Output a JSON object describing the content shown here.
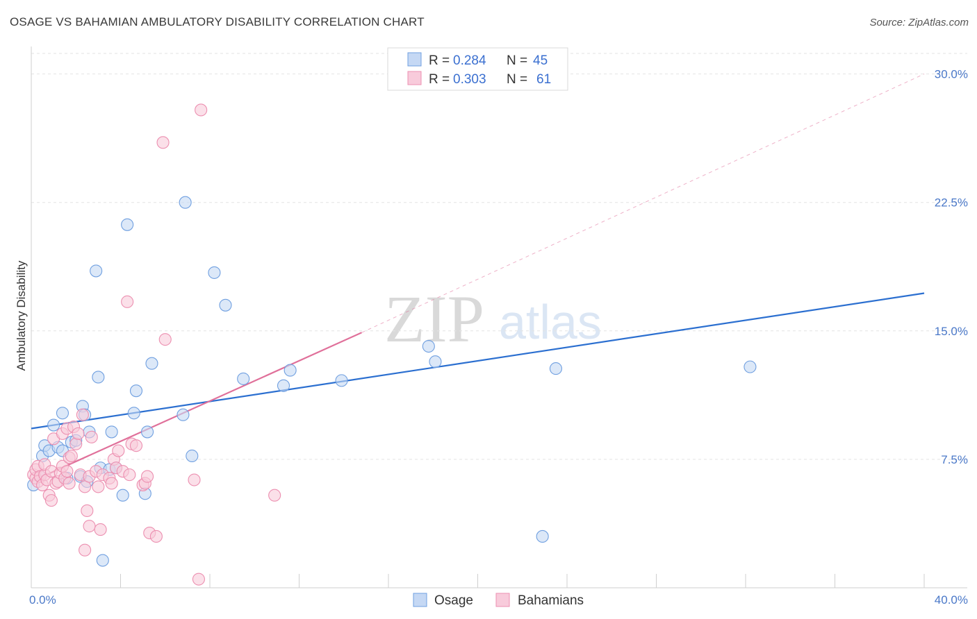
{
  "title": "OSAGE VS BAHAMIAN AMBULATORY DISABILITY CORRELATION CHART",
  "source": "Source: ZipAtlas.com",
  "watermark": {
    "zip": "ZIP",
    "atlas": "atlas"
  },
  "chart_data": {
    "type": "scatter",
    "ylabel": "Ambulatory Disability",
    "xlabel": "",
    "xlim": [
      0,
      40
    ],
    "ylim": [
      0,
      31.2
    ],
    "x_tick_labels": [
      {
        "value": 0,
        "label": "0.0%"
      },
      {
        "value": 40,
        "label": "40.0%"
      }
    ],
    "x_minor_ticks": [
      4,
      8,
      12,
      16,
      20,
      24,
      28,
      32,
      36,
      40
    ],
    "y_ticks": [
      {
        "value": 7.5,
        "label": "7.5%"
      },
      {
        "value": 15.0,
        "label": "15.0%"
      },
      {
        "value": 22.5,
        "label": "22.5%"
      },
      {
        "value": 30.0,
        "label": "30.0%"
      }
    ],
    "legend": [
      {
        "r_label": "R =",
        "r_value": "0.284",
        "n_label": "N =",
        "n_value": "45"
      },
      {
        "r_label": "R =",
        "r_value": "0.303",
        "n_label": "N =",
        "n_value": "61"
      }
    ],
    "series": [
      {
        "name": "Osage",
        "color": "#6f9fe0",
        "fill": "#c5d8f4",
        "line_color": "#2b6fd0",
        "trend": {
          "x0": 0,
          "y0": 9.3,
          "x1": 40,
          "y1": 17.2
        },
        "points": [
          [
            0.1,
            6.0
          ],
          [
            0.4,
            6.5
          ],
          [
            0.5,
            7.7
          ],
          [
            0.6,
            8.3
          ],
          [
            0.8,
            8.0
          ],
          [
            1.0,
            9.5
          ],
          [
            1.2,
            8.2
          ],
          [
            1.4,
            8.0
          ],
          [
            1.4,
            10.2
          ],
          [
            1.6,
            6.4
          ],
          [
            1.8,
            8.5
          ],
          [
            2.0,
            8.6
          ],
          [
            2.2,
            6.5
          ],
          [
            2.3,
            10.6
          ],
          [
            2.4,
            10.1
          ],
          [
            2.5,
            6.2
          ],
          [
            2.6,
            9.1
          ],
          [
            2.9,
            18.5
          ],
          [
            3.0,
            12.3
          ],
          [
            3.1,
            7.0
          ],
          [
            3.2,
            1.6
          ],
          [
            3.5,
            6.9
          ],
          [
            3.6,
            9.1
          ],
          [
            3.8,
            7.0
          ],
          [
            4.1,
            5.4
          ],
          [
            4.3,
            21.2
          ],
          [
            4.6,
            10.2
          ],
          [
            4.7,
            11.5
          ],
          [
            5.1,
            5.5
          ],
          [
            5.2,
            9.1
          ],
          [
            5.4,
            13.1
          ],
          [
            6.8,
            10.1
          ],
          [
            6.9,
            22.5
          ],
          [
            7.2,
            7.7
          ],
          [
            8.2,
            18.4
          ],
          [
            8.7,
            16.5
          ],
          [
            9.5,
            12.2
          ],
          [
            11.3,
            11.8
          ],
          [
            11.6,
            12.7
          ],
          [
            13.9,
            12.1
          ],
          [
            17.8,
            14.1
          ],
          [
            18.1,
            13.2
          ],
          [
            22.9,
            3.0
          ],
          [
            23.5,
            12.8
          ],
          [
            32.2,
            12.9
          ]
        ]
      },
      {
        "name": "Bahamians",
        "color": "#ec8fb0",
        "fill": "#f8cbdb",
        "line_color": "#e0709a",
        "trend": {
          "x0": 0,
          "y0": 6.2,
          "x1": 14.8,
          "y1": 14.9
        },
        "trend_dashed": {
          "x0": 14.8,
          "y0": 14.9,
          "x1": 40,
          "y1": 30.0
        },
        "points": [
          [
            0.1,
            6.6
          ],
          [
            0.2,
            6.4
          ],
          [
            0.2,
            6.9
          ],
          [
            0.3,
            6.2
          ],
          [
            0.3,
            7.1
          ],
          [
            0.4,
            6.5
          ],
          [
            0.5,
            6.0
          ],
          [
            0.6,
            6.6
          ],
          [
            0.6,
            7.2
          ],
          [
            0.7,
            6.3
          ],
          [
            0.8,
            5.4
          ],
          [
            0.9,
            6.8
          ],
          [
            0.9,
            5.1
          ],
          [
            1.0,
            8.7
          ],
          [
            1.1,
            6.1
          ],
          [
            1.2,
            6.2
          ],
          [
            1.3,
            6.7
          ],
          [
            1.4,
            7.1
          ],
          [
            1.4,
            9.0
          ],
          [
            1.5,
            6.4
          ],
          [
            1.6,
            6.8
          ],
          [
            1.6,
            9.3
          ],
          [
            1.7,
            7.6
          ],
          [
            1.7,
            6.1
          ],
          [
            1.8,
            7.7
          ],
          [
            1.9,
            9.4
          ],
          [
            2.0,
            8.4
          ],
          [
            2.1,
            9.0
          ],
          [
            2.2,
            6.6
          ],
          [
            2.3,
            10.1
          ],
          [
            2.4,
            5.9
          ],
          [
            2.5,
            4.5
          ],
          [
            2.6,
            6.5
          ],
          [
            2.6,
            3.6
          ],
          [
            2.7,
            8.8
          ],
          [
            2.9,
            6.8
          ],
          [
            3.0,
            5.9
          ],
          [
            3.1,
            3.4
          ],
          [
            3.2,
            6.6
          ],
          [
            3.5,
            6.4
          ],
          [
            3.6,
            6.1
          ],
          [
            3.7,
            7.5
          ],
          [
            3.8,
            7.0
          ],
          [
            3.9,
            8.0
          ],
          [
            4.1,
            6.8
          ],
          [
            4.3,
            16.7
          ],
          [
            4.4,
            6.6
          ],
          [
            4.5,
            8.4
          ],
          [
            4.7,
            8.3
          ],
          [
            5.0,
            6.0
          ],
          [
            5.1,
            6.1
          ],
          [
            5.2,
            6.5
          ],
          [
            5.3,
            3.2
          ],
          [
            5.6,
            3.0
          ],
          [
            5.9,
            26.0
          ],
          [
            6.0,
            14.5
          ],
          [
            7.3,
            6.3
          ],
          [
            7.5,
            0.5
          ],
          [
            7.6,
            27.9
          ],
          [
            10.9,
            5.4
          ],
          [
            2.4,
            2.2
          ]
        ]
      }
    ]
  }
}
